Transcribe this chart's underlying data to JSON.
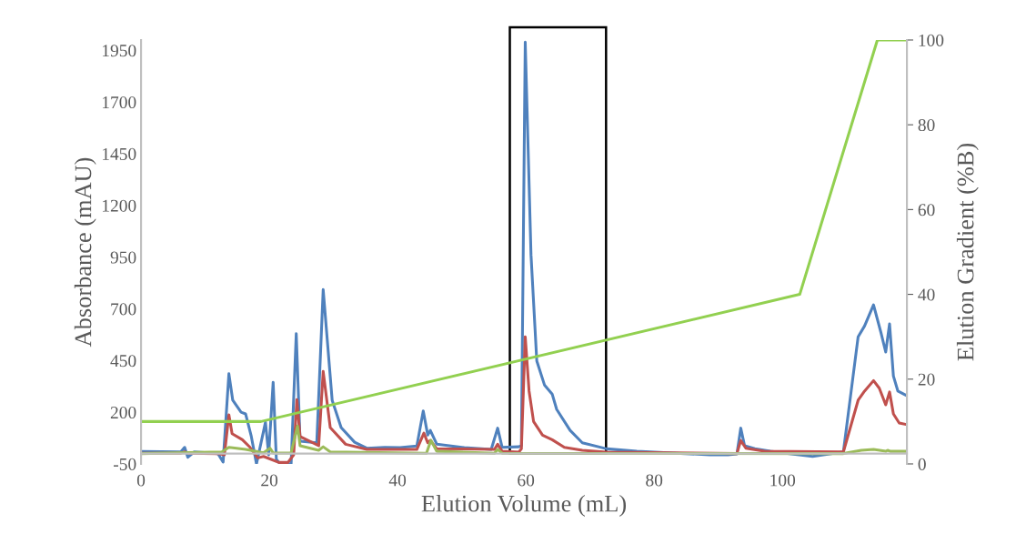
{
  "chart_data": {
    "type": "line",
    "xlabel": "Elution Volume (mL)",
    "ylabel": "Absorbance (mAU)",
    "y2label": "Elution Gradient (%B)",
    "xlim": [
      0,
      119.4
    ],
    "xticks": [
      0,
      20,
      40,
      60,
      80,
      100
    ],
    "ylim": [
      -50,
      2000
    ],
    "yticks": [
      -50,
      200,
      450,
      700,
      950,
      1200,
      1450,
      1700,
      1950
    ],
    "y2lim": [
      0,
      100
    ],
    "y2ticks": [
      0,
      20,
      40,
      60,
      80,
      100
    ],
    "bands": [
      {
        "axis": "x",
        "from": 57.5,
        "to": 72.5,
        "color": "#000000"
      }
    ],
    "grid": false,
    "marker": "none",
    "line_style": "solid",
    "series": [
      {
        "color": "#4f81bd",
        "x": [
          0,
          6.2,
          6.8,
          7.3,
          8.3,
          12,
          12.8,
          13.7,
          14.3,
          15.6,
          16.3,
          17.2,
          18.0,
          19.4,
          19.9,
          20.6,
          21.1,
          21.7,
          23.4,
          24.2,
          24.8,
          27.4,
          28.4,
          29.8,
          31.2,
          33.3,
          35.2,
          38,
          40.4,
          43,
          44,
          44.7,
          45.1,
          46.1,
          50.4,
          54.6,
          55.6,
          56.3,
          58.9,
          59.3,
          59.9,
          60.8,
          61.7,
          62.9,
          64.1,
          64.8,
          66.9,
          68.8,
          72.6,
          77.3,
          88.7,
          91.5,
          92.9,
          93.5,
          94.1,
          95.7,
          98.1,
          104.7,
          109.5,
          111.8,
          112.8,
          114.2,
          115.4,
          116.1,
          116.7,
          117.3,
          118.0,
          119.4
        ],
        "values": [
          10,
          8,
          30,
          -18,
          8,
          0,
          -41,
          386,
          258,
          200,
          192,
          82,
          -50,
          152,
          -6,
          345,
          -28,
          -50,
          -50,
          580,
          60,
          52,
          793,
          258,
          126,
          55,
          26,
          30,
          29,
          37,
          206,
          90,
          112,
          46,
          29,
          20,
          123,
          30,
          33,
          38,
          1990,
          961,
          448,
          332,
          288,
          214,
          112,
          52,
          23,
          11,
          -6,
          -6,
          -2,
          123,
          38,
          24,
          11,
          -14,
          8,
          565,
          617,
          719,
          580,
          491,
          627,
          375,
          302,
          280
        ]
      },
      {
        "color": "#c0504d",
        "x": [
          0,
          6.2,
          6.8,
          7.4,
          12,
          13.0,
          13.7,
          14.2,
          15.8,
          17.0,
          18.2,
          19.1,
          20.3,
          21.5,
          22.9,
          23.8,
          24.3,
          24.8,
          27.7,
          28.4,
          29.5,
          31.9,
          35.2,
          43,
          44.1,
          44.7,
          45.1,
          46.1,
          55.1,
          55.6,
          56.3,
          58.9,
          59.3,
          59.9,
          60.5,
          61.2,
          62.6,
          64.1,
          66.0,
          68.8,
          72.6,
          92.9,
          93.5,
          94.3,
          97.2,
          109.5,
          111.8,
          112.8,
          114.2,
          115.1,
          116.1,
          116.7,
          117.3,
          118.2,
          119.4
        ],
        "values": [
          2,
          2,
          8,
          2,
          0,
          -6,
          187,
          96,
          67,
          30,
          -21,
          -14,
          -28,
          -43,
          -43,
          -6,
          261,
          82,
          38,
          397,
          126,
          45,
          20,
          20,
          99,
          52,
          64,
          24,
          20,
          45,
          11,
          7,
          23,
          565,
          302,
          155,
          89,
          67,
          30,
          16,
          7,
          0,
          63,
          26,
          11,
          8,
          258,
          302,
          353,
          316,
          236,
          298,
          192,
          148,
          140
        ]
      },
      {
        "color": "#9bbb59",
        "x": [
          0,
          12.6,
          13.7,
          16.3,
          19.1,
          20.1,
          20.6,
          23.4,
          24.4,
          24.8,
          27.7,
          28.4,
          29.5,
          44.5,
          45.2,
          46.1,
          55.1,
          55.6,
          56.3,
          109.5,
          112.3,
          114.2,
          116.1,
          116.4,
          116.8,
          119.4
        ],
        "values": [
          0,
          8,
          30,
          20,
          4,
          26,
          3,
          3,
          133,
          38,
          16,
          33,
          8,
          2,
          64,
          11,
          2,
          20,
          2,
          0,
          16,
          20,
          11,
          16,
          11,
          11
        ]
      },
      {
        "color": "#92d050",
        "axis": "y2",
        "x": [
          0,
          18.7,
          102.7,
          114.8,
          119.4
        ],
        "values": [
          10,
          10,
          40,
          100,
          100
        ]
      }
    ]
  }
}
